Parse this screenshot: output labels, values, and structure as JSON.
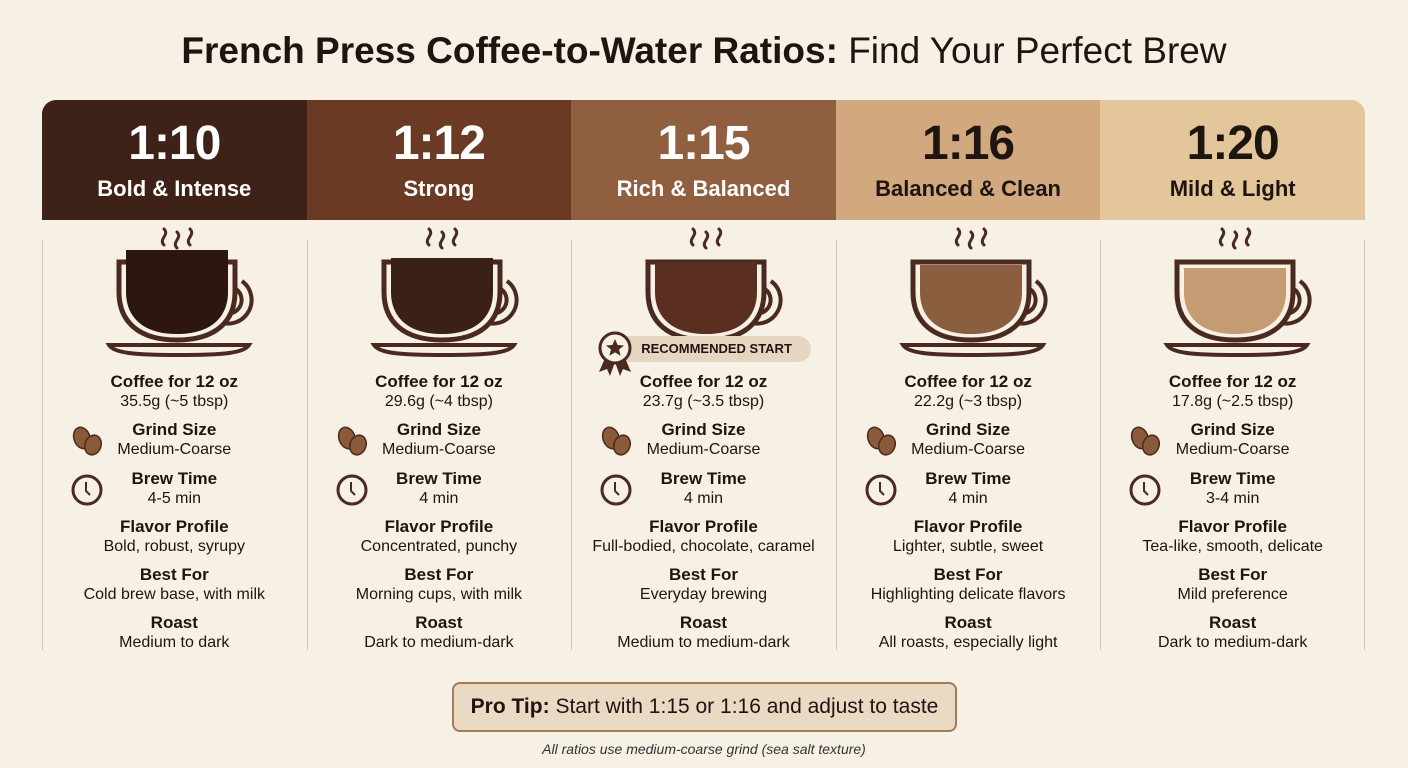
{
  "title": {
    "bold": "French Press Coffee-to-Water Ratios:",
    "rest": "Find Your Perfect Brew"
  },
  "labels": {
    "coffee": "Coffee for 12 oz",
    "grind": "Grind Size",
    "brew": "Brew Time",
    "flavor": "Flavor Profile",
    "best": "Best For",
    "roast": "Roast"
  },
  "badge": "RECOMMENDED START",
  "columns": [
    {
      "ratio": "1:10",
      "name": "Bold & Intense",
      "coffee": "35.5g (~5 tbsp)",
      "grind": "Medium-Coarse",
      "brew": "4-5 min",
      "flavor": "Bold, robust, syrupy",
      "best": "Cold brew base, with milk",
      "roast": "Medium to dark",
      "header_color": "#3e2217",
      "text_color": "#ffffff",
      "coffee_color": "#2d1510"
    },
    {
      "ratio": "1:12",
      "name": "Strong",
      "coffee": "29.6g (~4 tbsp)",
      "grind": "Medium-Coarse",
      "brew": "4 min",
      "flavor": "Concentrated, punchy",
      "best": "Morning cups, with milk",
      "roast": "Dark to medium-dark",
      "header_color": "#6a3a24",
      "text_color": "#ffffff",
      "coffee_color": "#3a2016"
    },
    {
      "ratio": "1:15",
      "name": "Rich & Balanced",
      "coffee": "23.7g (~3.5 tbsp)",
      "grind": "Medium-Coarse",
      "brew": "4 min",
      "flavor": "Full-bodied, chocolate, caramel",
      "best": "Everyday brewing",
      "roast": "Medium to medium-dark",
      "header_color": "#8f5f3f",
      "text_color": "#ffffff",
      "coffee_color": "#5b2f1f"
    },
    {
      "ratio": "1:16",
      "name": "Balanced & Clean",
      "coffee": "22.2g (~3 tbsp)",
      "grind": "Medium-Coarse",
      "brew": "4 min",
      "flavor": "Lighter, subtle, sweet",
      "best": "Highlighting delicate flavors",
      "roast": "All roasts, especially light",
      "header_color": "#d2a97e",
      "text_color": "#1e1410",
      "coffee_color": "#8b5e40"
    },
    {
      "ratio": "1:20",
      "name": "Mild & Light",
      "coffee": "17.8g (~2.5 tbsp)",
      "grind": "Medium-Coarse",
      "brew": "3-4 min",
      "flavor": "Tea-like, smooth, delicate",
      "best": "Mild preference",
      "roast": "Dark to medium-dark",
      "header_color": "#e3c699",
      "text_color": "#1e1410",
      "coffee_color": "#c49b73"
    }
  ],
  "recommended_index": 2,
  "pro_tip": {
    "label": "Pro Tip:",
    "text": "Start with 1:15 or 1:16 and adjust to taste"
  },
  "footnote": "All ratios use medium-coarse grind (sea salt texture)",
  "icons": {
    "grind": "coffee-beans-icon",
    "brew": "clock-icon",
    "cup": "coffee-cup-icon",
    "badge": "award-medal-icon"
  }
}
